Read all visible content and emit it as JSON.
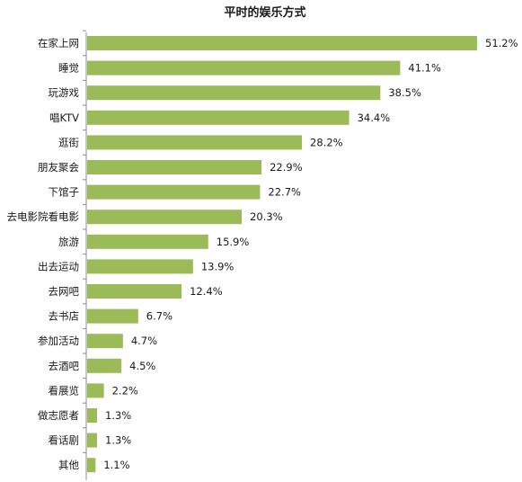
{
  "chart_data": {
    "type": "bar",
    "orientation": "horizontal",
    "title": "平时的娱乐方式",
    "categories": [
      "在家上网",
      "睡觉",
      "玩游戏",
      "唱KTV",
      "逛街",
      "朋友聚会",
      "下馆子",
      "去电影院看电影",
      "旅游",
      "出去运动",
      "去网吧",
      "去书店",
      "参加活动",
      "去酒吧",
      "看展览",
      "做志愿者",
      "看话剧",
      "其他"
    ],
    "values": [
      51.2,
      41.1,
      38.5,
      34.4,
      28.2,
      22.9,
      22.7,
      20.3,
      15.9,
      13.9,
      12.4,
      6.7,
      4.7,
      4.5,
      2.2,
      1.3,
      1.3,
      1.1
    ],
    "value_labels": [
      "51.2%",
      "41.1%",
      "38.5%",
      "34.4%",
      "28.2%",
      "22.9%",
      "22.7%",
      "20.3%",
      "15.9%",
      "13.9%",
      "12.4%",
      "6.7%",
      "4.7%",
      "4.5%",
      "2.2%",
      "1.3%",
      "1.3%",
      "1.1%"
    ],
    "xlim": [
      0,
      51.2
    ],
    "grid": false,
    "legend": "none",
    "bar_color": "#9bbb59"
  }
}
